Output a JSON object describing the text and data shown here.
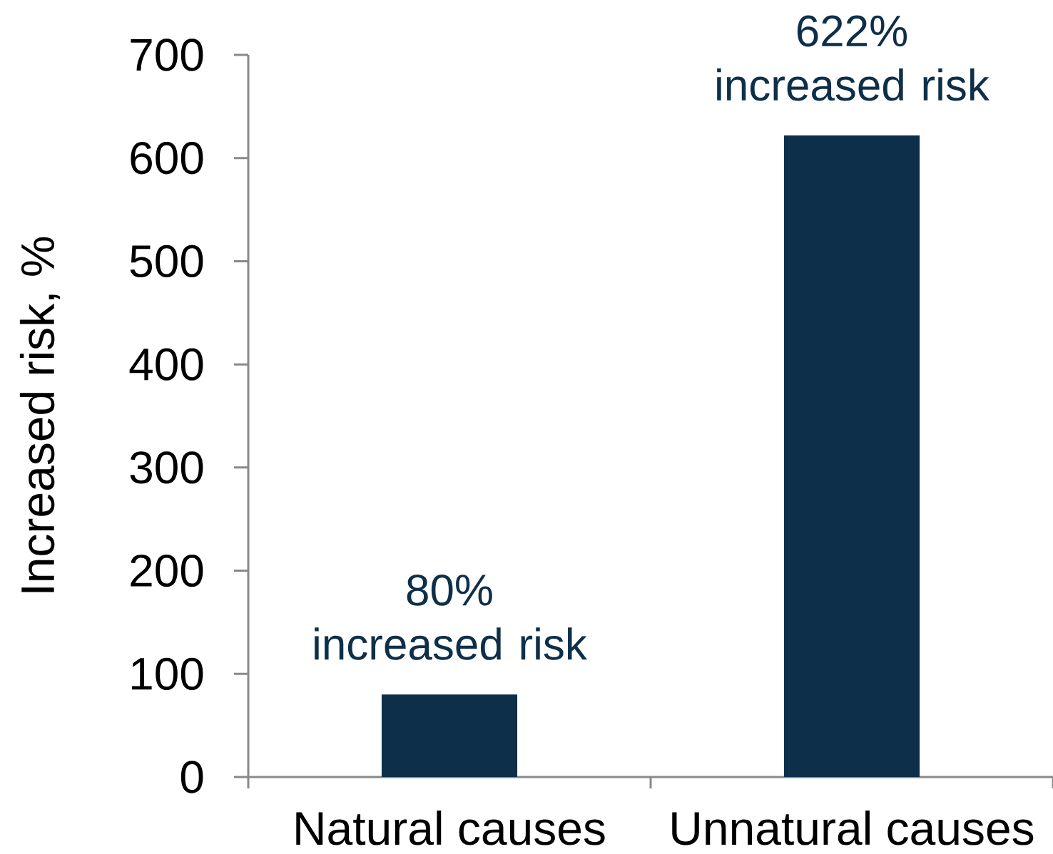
{
  "chart_data": {
    "type": "bar",
    "categories": [
      "Natural causes",
      "Unnatural causes"
    ],
    "values": [
      80,
      622
    ],
    "value_labels": [
      "80% increased risk",
      "622% increased risk"
    ],
    "color": "#0e2f4a",
    "ylabel": "Increased risk, %",
    "ylim": [
      0,
      700
    ],
    "yticks": [
      0,
      100,
      200,
      300,
      400,
      500,
      600,
      700
    ]
  }
}
